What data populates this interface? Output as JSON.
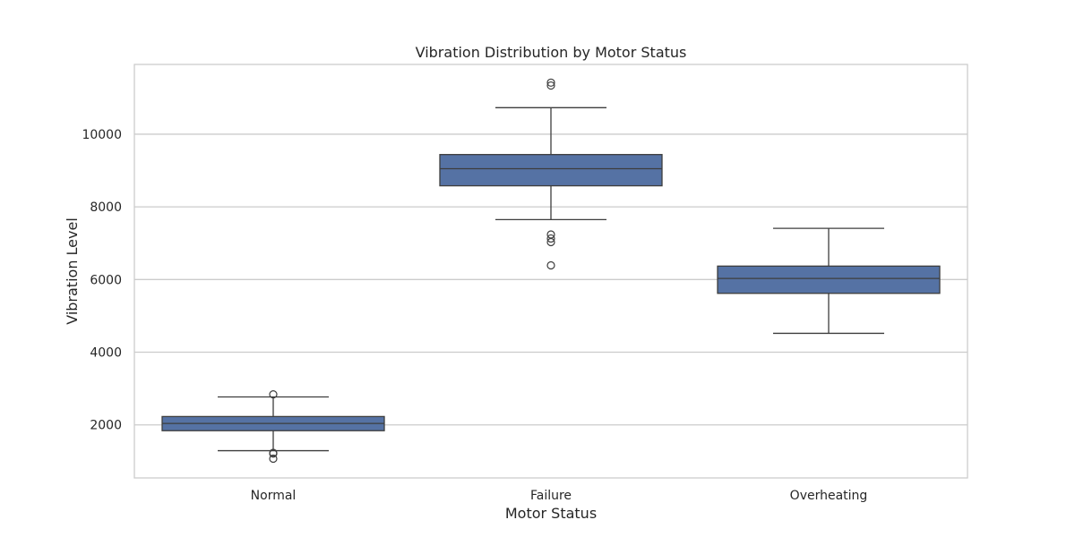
{
  "chart_data": {
    "type": "box",
    "title": "Vibration Distribution by Motor Status",
    "xlabel": "Motor Status",
    "ylabel": "Vibration Level",
    "ylim": [
      540,
      11920
    ],
    "yticks": [
      2000,
      4000,
      6000,
      8000,
      10000
    ],
    "y_tick_labels": [
      "2000",
      "4000",
      "6000",
      "8000",
      "10000"
    ],
    "grid": "horizontal",
    "categories": [
      "Normal",
      "Failure",
      "Overheating"
    ],
    "boxes": [
      {
        "category": "Normal",
        "whisker_low": 1290,
        "q1": 1840,
        "median": 2040,
        "q3": 2230,
        "whisker_high": 2770,
        "outliers": [
          2840,
          1230,
          1210,
          1070
        ]
      },
      {
        "category": "Failure",
        "whisker_low": 7650,
        "q1": 8580,
        "median": 9050,
        "q3": 9440,
        "whisker_high": 10730,
        "outliers": [
          11420,
          11340,
          7240,
          7130,
          7030,
          6390
        ]
      },
      {
        "category": "Overheating",
        "whisker_low": 4520,
        "q1": 5620,
        "median": 6030,
        "q3": 6370,
        "whisker_high": 7410,
        "outliers": []
      }
    ],
    "colors": {
      "box_fill": "#5572a4",
      "line": "#3d3d3d",
      "grid": "#cccccc",
      "frame": "#cccccc"
    }
  }
}
